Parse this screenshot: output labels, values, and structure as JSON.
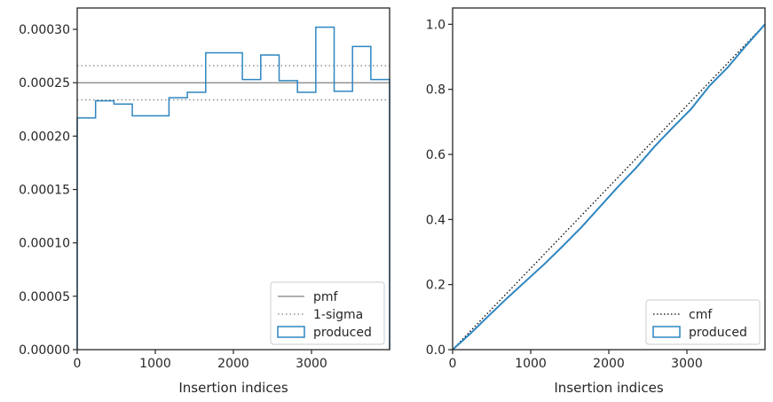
{
  "chart_data": [
    {
      "type": "step",
      "xlabel": "Insertion indices",
      "ylabel": "",
      "xlim": [
        0,
        4000
      ],
      "ylim": [
        0,
        0.00032
      ],
      "xticks": [
        0,
        1000,
        2000,
        3000
      ],
      "xtick_labels": [
        "0",
        "1000",
        "2000",
        "3000"
      ],
      "yticks": [
        0,
        5e-05,
        0.0001,
        0.00015,
        0.0002,
        0.00025,
        0.0003
      ],
      "ytick_labels": [
        "0.00000",
        "0.00005",
        "0.00010",
        "0.00015",
        "0.00020",
        "0.00025",
        "0.00030"
      ],
      "grid": false,
      "legend_position": "lower-right",
      "reference_lines": [
        {
          "name": "pmf",
          "y": 0.00025,
          "style": "solid",
          "color": "#808080"
        },
        {
          "name": "1-sigma",
          "y": 0.000266,
          "style": "dotted",
          "color": "#808080"
        },
        {
          "name": "1-sigma",
          "y": 0.000234,
          "style": "dotted",
          "color": "#808080"
        }
      ],
      "series": [
        {
          "name": "produced",
          "color": "#2e86c1",
          "bin_edges": [
            0,
            235,
            470,
            705,
            1175,
            1410,
            1645,
            2115,
            2350,
            2585,
            2820,
            3055,
            3290,
            3525,
            3760,
            4000
          ],
          "values": [
            0.000217,
            0.000233,
            0.00023,
            0.000219,
            0.000236,
            0.000241,
            0.000278,
            0.000253,
            0.000276,
            0.000252,
            0.000241,
            0.000302,
            0.000242,
            0.000284,
            0.000253
          ]
        }
      ],
      "legend": [
        "pmf",
        "1-sigma",
        "produced"
      ]
    },
    {
      "type": "line",
      "xlabel": "Insertion indices",
      "ylabel": "",
      "xlim": [
        0,
        4000
      ],
      "ylim": [
        0,
        1.05
      ],
      "xticks": [
        0,
        1000,
        2000,
        3000
      ],
      "xtick_labels": [
        "0",
        "1000",
        "2000",
        "3000"
      ],
      "yticks": [
        0,
        0.2,
        0.4,
        0.6,
        0.8,
        1.0
      ],
      "ytick_labels": [
        "0.0",
        "0.2",
        "0.4",
        "0.6",
        "0.8",
        "1.0"
      ],
      "grid": false,
      "legend_position": "lower-right",
      "series": [
        {
          "name": "cmf",
          "style": "dotted",
          "color": "#000000",
          "x": [
            0,
            4000
          ],
          "y": [
            0,
            1.0
          ]
        },
        {
          "name": "produced",
          "color": "#2e86c1",
          "x": [
            0,
            235,
            470,
            705,
            1175,
            1410,
            1645,
            2115,
            2350,
            2585,
            2820,
            3055,
            3290,
            3525,
            3760,
            4000
          ],
          "y": [
            0,
            0.051,
            0.106,
            0.16,
            0.263,
            0.318,
            0.375,
            0.5,
            0.559,
            0.624,
            0.683,
            0.74,
            0.811,
            0.868,
            0.935,
            1.0
          ]
        }
      ],
      "legend": [
        "cmf",
        "produced"
      ]
    }
  ]
}
